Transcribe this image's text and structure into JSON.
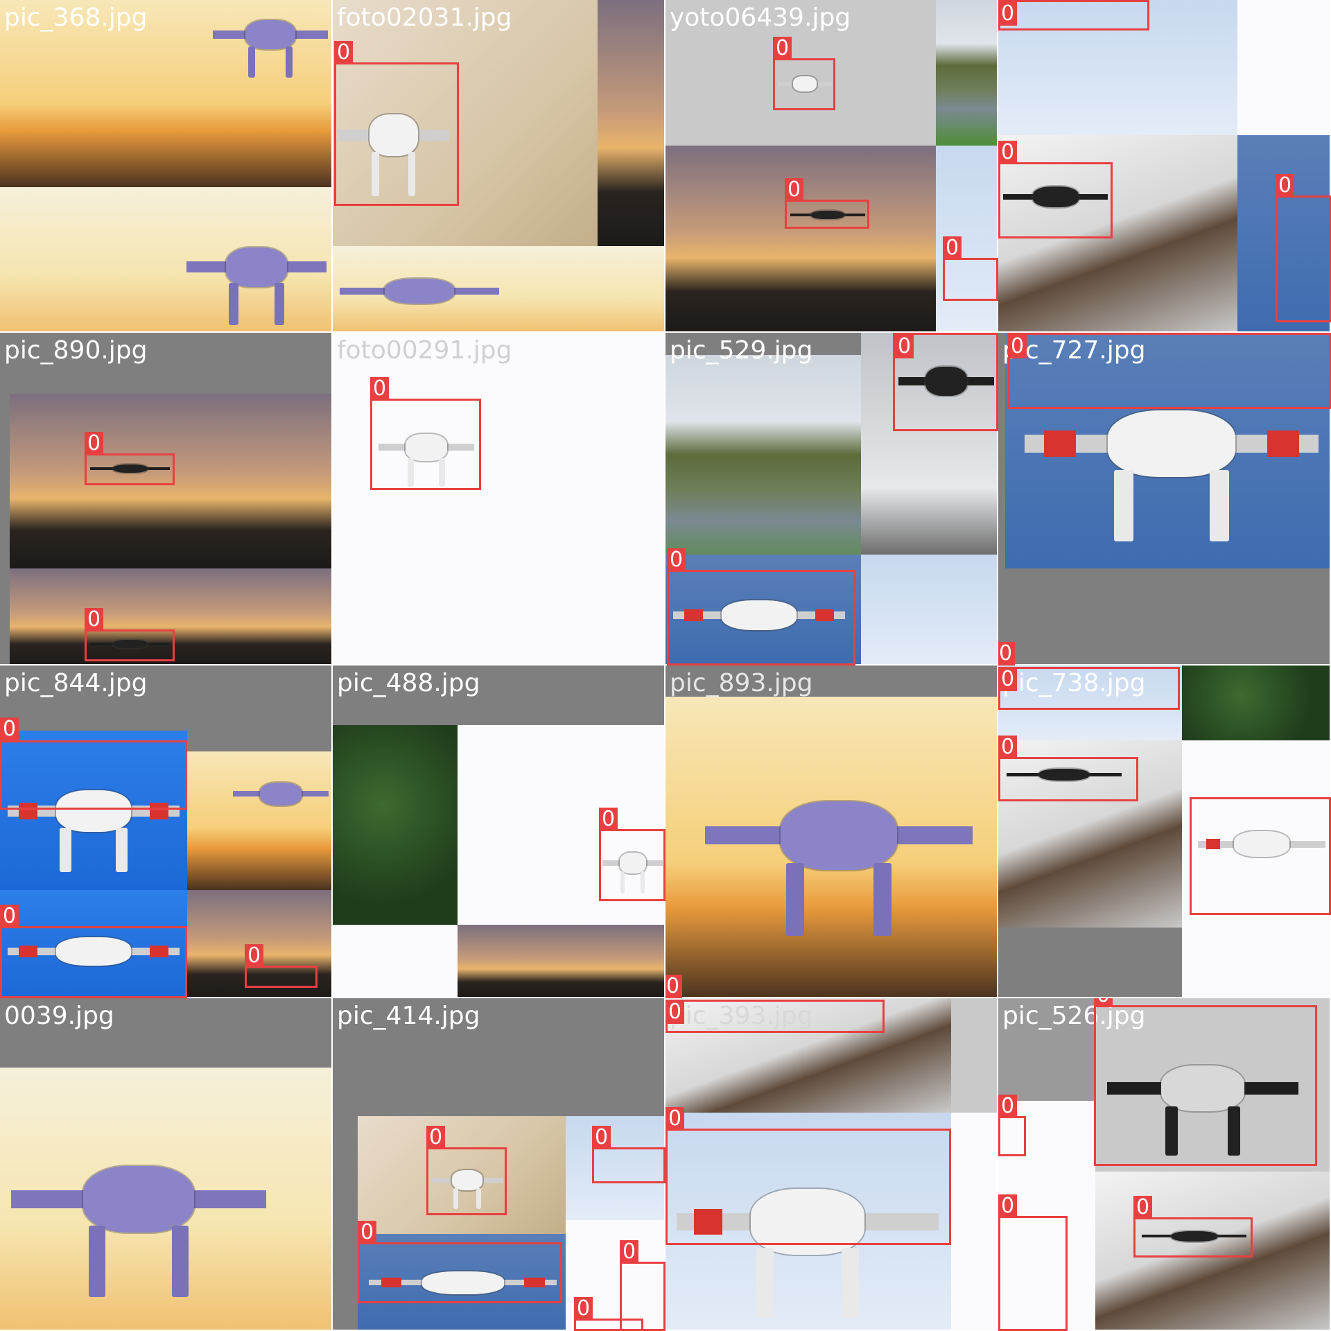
{
  "mosaic": {
    "tiles": [
      {
        "filename": "pic_368.jpg",
        "boxes": []
      },
      {
        "filename": "foto02031.jpg",
        "boxes": [
          {
            "label": "0"
          }
        ]
      },
      {
        "filename": "yoto06439.jpg",
        "boxes": [
          {
            "label": "0"
          },
          {
            "label": "0"
          },
          {
            "label": "0"
          }
        ]
      },
      {
        "filename": "",
        "boxes": [
          {
            "label": "0"
          },
          {
            "label": "0"
          },
          {
            "label": "0"
          }
        ]
      },
      {
        "filename": "pic_890.jpg",
        "boxes": [
          {
            "label": "0"
          },
          {
            "label": "0"
          }
        ]
      },
      {
        "filename": "foto00291.jpg",
        "boxes": [
          {
            "label": "0"
          }
        ]
      },
      {
        "filename": "pic_529.jpg",
        "boxes": [
          {
            "label": "0"
          },
          {
            "label": "0"
          }
        ]
      },
      {
        "filename": "pic_727.jpg",
        "boxes": [
          {
            "label": "0"
          },
          {
            "label": "0"
          }
        ]
      },
      {
        "filename": "pic_844.jpg",
        "boxes": [
          {
            "label": "0"
          },
          {
            "label": "0"
          },
          {
            "label": "0"
          }
        ]
      },
      {
        "filename": "pic_488.jpg",
        "boxes": [
          {
            "label": "0"
          }
        ]
      },
      {
        "filename": "pic_893.jpg",
        "boxes": [
          {
            "label": "0"
          }
        ]
      },
      {
        "filename": "pic_738.jpg",
        "boxes": [
          {
            "label": "0"
          },
          {
            "label": "0"
          }
        ]
      },
      {
        "filename": "0039.jpg",
        "boxes": []
      },
      {
        "filename": "pic_414.jpg",
        "boxes": [
          {
            "label": "0"
          },
          {
            "label": "0"
          },
          {
            "label": "0"
          },
          {
            "label": "0"
          },
          {
            "label": "0"
          }
        ]
      },
      {
        "filename": "pic_393.jpg",
        "boxes": [
          {
            "label": "0"
          },
          {
            "label": "0"
          }
        ]
      },
      {
        "filename": "pic_526.jpg",
        "boxes": [
          {
            "label": "0"
          },
          {
            "label": "0"
          },
          {
            "label": "0"
          },
          {
            "label": "0"
          },
          {
            "label": "0"
          }
        ]
      }
    ]
  },
  "colors": {
    "box_color": "#e84040",
    "label_text_color": "#ffffff",
    "fill_grey": "#7f7f7f"
  }
}
